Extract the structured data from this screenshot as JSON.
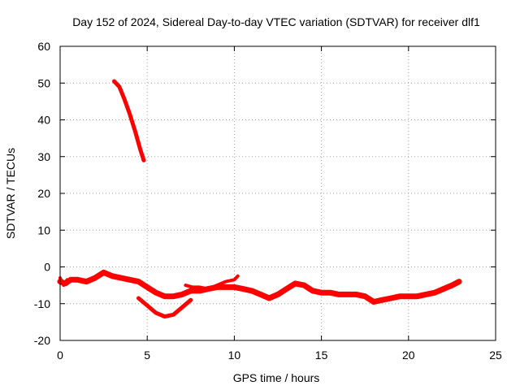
{
  "chart_data": {
    "type": "line",
    "title": "Day 152 of 2024, Sidereal Day-to-day VTEC variation (SDTVAR) for receiver dlf1",
    "xlabel": "GPS time / hours",
    "ylabel": "SDTVAR / TECUs",
    "xlim": [
      0,
      25
    ],
    "ylim": [
      -20,
      60
    ],
    "xticks": [
      0,
      5,
      10,
      15,
      20,
      25
    ],
    "yticks": [
      -20,
      -10,
      0,
      10,
      20,
      30,
      40,
      50,
      60
    ],
    "xtick_labels": [
      "0",
      "5",
      "10",
      "15",
      "20",
      "25"
    ],
    "ytick_labels": [
      "-20",
      "-10",
      "0",
      "10",
      "20",
      "30",
      "40",
      "50",
      "60"
    ],
    "grid": true,
    "series_color": "#ff0000",
    "series": [
      {
        "name": "main-trend",
        "x": [
          0.0,
          0.3,
          0.6,
          1.0,
          1.5,
          2.0,
          2.5,
          3.0,
          3.5,
          4.0,
          4.5,
          5.0,
          5.5,
          6.0,
          6.5,
          7.0,
          7.5,
          8.0,
          8.5,
          9.0,
          9.5,
          10.0,
          10.5,
          11.0,
          11.5,
          12.0,
          12.5,
          13.0,
          13.5,
          14.0,
          14.5,
          15.0,
          15.5,
          16.0,
          16.5,
          17.0,
          17.5,
          18.0,
          18.5,
          19.0,
          19.5,
          20.0,
          20.5,
          21.0,
          21.5,
          22.0,
          22.5,
          22.9
        ],
        "y": [
          -4.0,
          -4.5,
          -3.5,
          -3.5,
          -4.0,
          -3.0,
          -1.5,
          -2.5,
          -3.0,
          -3.5,
          -4.0,
          -5.5,
          -7.0,
          -8.0,
          -8.0,
          -7.5,
          -6.5,
          -6.5,
          -6.0,
          -5.5,
          -5.5,
          -5.5,
          -6.0,
          -6.5,
          -7.5,
          -8.5,
          -7.5,
          -6.0,
          -4.5,
          -5.0,
          -6.5,
          -7.0,
          -7.0,
          -7.5,
          -7.5,
          -7.5,
          -8.0,
          -9.5,
          -9.0,
          -8.5,
          -8.0,
          -8.0,
          -8.0,
          -7.5,
          -7.0,
          -6.0,
          -5.0,
          -4.0
        ],
        "width": 7
      },
      {
        "name": "high-segment",
        "x": [
          3.1,
          3.4,
          3.7,
          4.0,
          4.3,
          4.6,
          4.8
        ],
        "y": [
          50.5,
          49.0,
          45.5,
          41.5,
          37.0,
          32.0,
          29.0
        ],
        "width": 5
      },
      {
        "name": "low-dip",
        "x": [
          4.5,
          5.0,
          5.5,
          6.0,
          6.5,
          7.0,
          7.5
        ],
        "y": [
          -8.5,
          -10.5,
          -12.5,
          -13.5,
          -13.0,
          -11.0,
          -9.0
        ],
        "width": 5
      },
      {
        "name": "mid-bump",
        "x": [
          7.2,
          7.6,
          8.0,
          8.5,
          9.0,
          9.5,
          10.0,
          10.2
        ],
        "y": [
          -5.0,
          -5.5,
          -5.5,
          -6.0,
          -5.0,
          -4.0,
          -3.5,
          -2.5
        ],
        "width": 4
      },
      {
        "name": "start-jitter",
        "x": [
          0.0,
          0.2,
          0.4
        ],
        "y": [
          -3.0,
          -5.0,
          -3.5
        ],
        "width": 4
      }
    ]
  }
}
